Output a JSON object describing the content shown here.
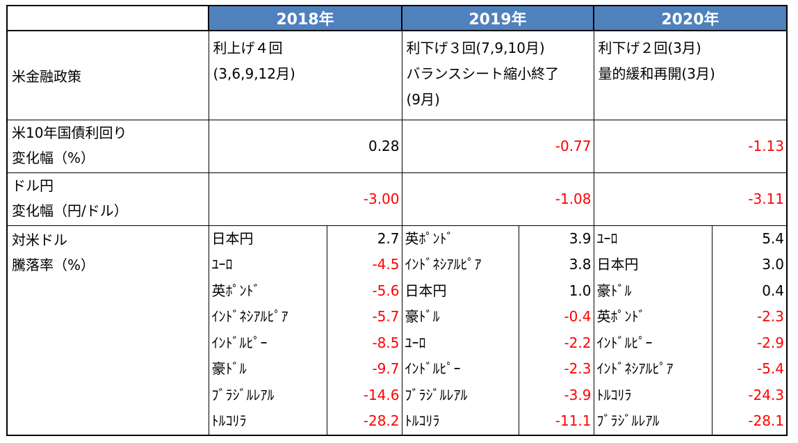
{
  "header": {
    "y2018": "2018年",
    "y2019": "2019年",
    "y2020": "2020年"
  },
  "policy": {
    "label": "米金融政策",
    "y2018": [
      "利上げ４回",
      "(3,6,9,12月)"
    ],
    "y2019": [
      "利下げ３回(7,9,10月)",
      "バランスシート縮小終了",
      "(9月)"
    ],
    "y2020": [
      "利下げ２回(3月)",
      "量的緩和再開(3月)"
    ]
  },
  "yield": {
    "label": [
      "米10年国債利回り",
      "変化幅（%）"
    ],
    "values": [
      "0.28",
      "-0.77",
      "-1.13"
    ]
  },
  "usdjpy": {
    "label": [
      "ドル円",
      "変化幅（円/ドル）"
    ],
    "values": [
      "-3.00",
      "-1.08",
      "-3.11"
    ]
  },
  "fx": {
    "label": [
      "対米ドル",
      "騰落率（%）"
    ],
    "y2018": [
      {
        "name": "日本円",
        "value": "2.7"
      },
      {
        "name": "ﾕｰﾛ",
        "value": "-4.5"
      },
      {
        "name": "英ﾎﾟﾝﾄﾞ",
        "value": "-5.6"
      },
      {
        "name": "ｲﾝﾄﾞﾈｼｱﾙﾋﾟｱ",
        "value": "-5.7"
      },
      {
        "name": "ｲﾝﾄﾞﾙﾋﾟｰ",
        "value": "-8.5"
      },
      {
        "name": "豪ﾄﾞﾙ",
        "value": "-9.7"
      },
      {
        "name": "ﾌﾞﾗｼﾞﾙﾚｱﾙ",
        "value": "-14.6"
      },
      {
        "name": "ﾄﾙｺﾘﾗ",
        "value": "-28.2"
      }
    ],
    "y2019": [
      {
        "name": "英ﾎﾟﾝﾄﾞ",
        "value": "3.9"
      },
      {
        "name": "ｲﾝﾄﾞﾈｼｱﾙﾋﾟｱ",
        "value": "3.8"
      },
      {
        "name": "日本円",
        "value": "1.0"
      },
      {
        "name": "豪ﾄﾞﾙ",
        "value": "-0.4"
      },
      {
        "name": "ﾕｰﾛ",
        "value": "-2.2"
      },
      {
        "name": "ｲﾝﾄﾞﾙﾋﾟｰ",
        "value": "-2.3"
      },
      {
        "name": "ﾌﾞﾗｼﾞﾙﾚｱﾙ",
        "value": "-3.9"
      },
      {
        "name": "ﾄﾙｺﾘﾗ",
        "value": "-11.1"
      }
    ],
    "y2020": [
      {
        "name": "ﾕｰﾛ",
        "value": "5.4"
      },
      {
        "name": "日本円",
        "value": "3.0"
      },
      {
        "name": "豪ﾄﾞﾙ",
        "value": "0.4"
      },
      {
        "name": "英ﾎﾟﾝﾄﾞ",
        "value": "-2.3"
      },
      {
        "name": "ｲﾝﾄﾞﾙﾋﾟｰ",
        "value": "-2.9"
      },
      {
        "name": "ｲﾝﾄﾞﾈｼｱﾙﾋﾟｱ",
        "value": "-5.4"
      },
      {
        "name": "ﾄﾙｺﾘﾗ",
        "value": "-24.3"
      },
      {
        "name": "ﾌﾞﾗｼﾞﾙﾚｱﾙ",
        "value": "-28.1"
      }
    ]
  },
  "colors": {
    "header_bg": "#4f81bd",
    "header_text": "#ffffff",
    "negative": "#ff0000",
    "positive": "#000000"
  }
}
